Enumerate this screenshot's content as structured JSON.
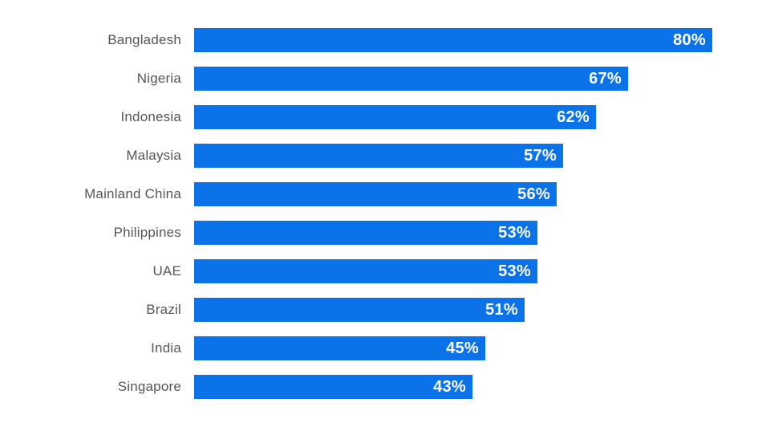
{
  "chart_data": {
    "type": "bar",
    "orientation": "horizontal",
    "title": "",
    "xlabel": "",
    "ylabel": "",
    "categories": [
      "Bangladesh",
      "Nigeria",
      "Indonesia",
      "Malaysia",
      "Mainland China",
      "Philippines",
      "UAE",
      "Brazil",
      "India",
      "Singapore"
    ],
    "values": [
      80,
      67,
      62,
      57,
      56,
      53,
      53,
      51,
      45,
      43
    ],
    "value_labels": [
      "80%",
      "67%",
      "62%",
      "57%",
      "56%",
      "53%",
      "53%",
      "51%",
      "45%",
      "43%"
    ],
    "xlim": [
      0,
      87
    ],
    "grid": false,
    "legend": false,
    "axes_visible": false
  },
  "colors": {
    "bar": "#0b72e8",
    "category_label": "#55565a",
    "value_label": "#ffffff",
    "background": "#ffffff"
  }
}
